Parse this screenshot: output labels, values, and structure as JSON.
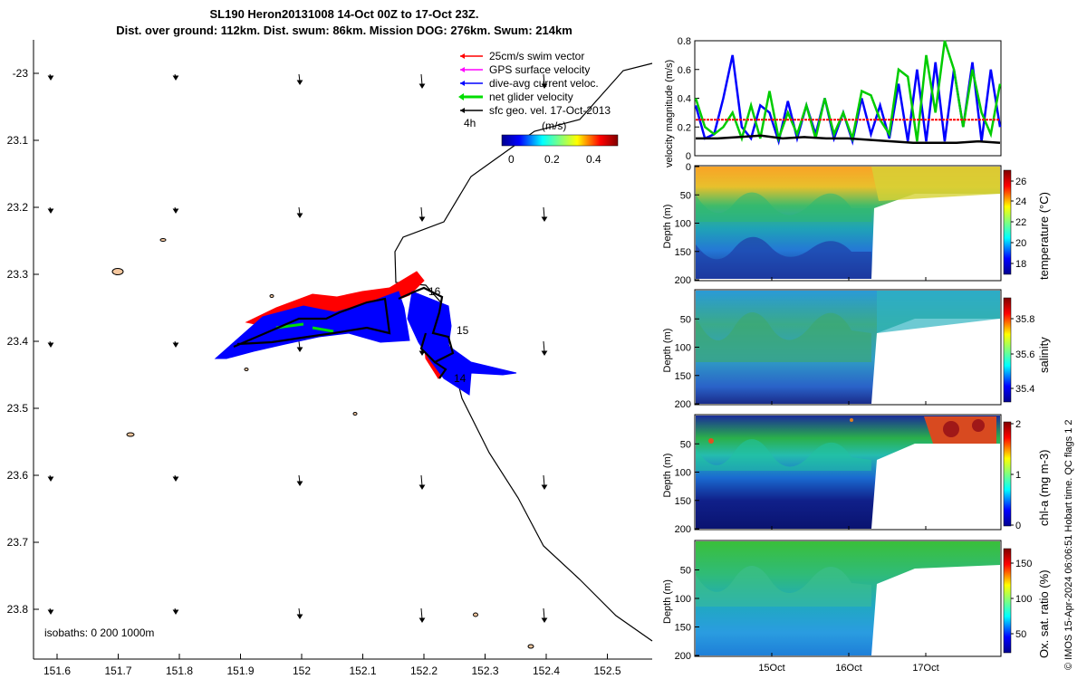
{
  "title": {
    "line1": "SL190 Heron20131008 14-Oct 00Z to 17-Oct 23Z.",
    "line2": "Dist. over ground: 112km. Dist. swum: 86km. Mission DOG: 276km. Swum: 214km"
  },
  "map": {
    "legend": [
      {
        "label": "25cm/s swim vector",
        "color": "#ff0000"
      },
      {
        "label": "GPS surface velocity",
        "color": "#ff00ff"
      },
      {
        "label": "dive-avg current veloc.",
        "color": "#0000ff"
      },
      {
        "label": "net glider velocity",
        "color": "#00dd00"
      },
      {
        "label": "sfc geo. vel. 17-Oct-2013",
        "color": "#000000"
      }
    ],
    "interval_label": "4h",
    "colorbar": {
      "label": "(m/s)",
      "ticks": [
        "0",
        "0.2",
        "0.4"
      ]
    },
    "isobath_label": "isobaths: 0   200  1000m",
    "x_ticks": [
      "151.6",
      "151.7",
      "151.8",
      "151.9",
      "152",
      "152.1",
      "152.2",
      "152.3",
      "152.4",
      "152.5"
    ],
    "y_ticks": [
      "-23",
      "23.1",
      "23.2",
      "23.3",
      "23.4",
      "23.5",
      "23.6",
      "23.7",
      "23.8"
    ],
    "day_labels": [
      "16",
      "15",
      "14"
    ]
  },
  "velocity_panel": {
    "ylabel": "velocity magnitude (m/s)",
    "y_ticks": [
      "0.8",
      "0.6",
      "0.4",
      "0.2",
      "0"
    ]
  },
  "sections": [
    {
      "colorbar_label": "temperature (°C)",
      "cb_ticks": [
        "26",
        "24",
        "22",
        "20",
        "18"
      ]
    },
    {
      "colorbar_label": "salinity",
      "cb_ticks": [
        "35.8",
        "35.6",
        "35.4"
      ]
    },
    {
      "colorbar_label": "chl-a (mg m-3)",
      "cb_ticks": [
        "2",
        "1",
        "0"
      ]
    },
    {
      "colorbar_label": "Ox. sat. ratio (%)",
      "cb_ticks": [
        "150",
        "100",
        "50"
      ]
    }
  ],
  "depth_label": "Depth (m)",
  "depth_ticks": [
    "0",
    "50",
    "100",
    "150",
    "200"
  ],
  "time_ticks": [
    "15Oct",
    "16Oct",
    "17Oct"
  ],
  "footer": "© IMOS 15-Apr-2024 06:06:51 Hobart time. QC flags 1  2",
  "chart_data": [
    {
      "type": "scatter",
      "description": "glider track map",
      "x_range": [
        151.57,
        152.58
      ],
      "y_range": [
        -22.95,
        -23.87
      ],
      "xlabel": "",
      "ylabel": "",
      "track": [
        [
          151.86,
          -23.42
        ],
        [
          151.95,
          -23.38
        ],
        [
          152.05,
          -23.35
        ],
        [
          152.12,
          -23.32
        ],
        [
          152.1,
          -23.38
        ],
        [
          152.18,
          -23.33
        ],
        [
          152.22,
          -23.32
        ],
        [
          152.25,
          -23.34
        ],
        [
          152.21,
          -23.37
        ],
        [
          152.25,
          -23.42
        ],
        [
          152.2,
          -23.45
        ],
        [
          152.25,
          -23.5
        ]
      ]
    },
    {
      "type": "line",
      "description": "velocity magnitude time series",
      "ylim": [
        0,
        0.8
      ],
      "ylabel": "velocity magnitude (m/s)",
      "series": [
        {
          "color": "#0000ff",
          "values": [
            0.35,
            0.12,
            0.15,
            0.4,
            0.7,
            0.2,
            0.12,
            0.35,
            0.3,
            0.1,
            0.38,
            0.12,
            0.35,
            0.15,
            0.4,
            0.12,
            0.3,
            0.1,
            0.4,
            0.15,
            0.35,
            0.12,
            0.5,
            0.1,
            0.6,
            0.1,
            0.65,
            0.1,
            0.6,
            0.2,
            0.65,
            0.1,
            0.6,
            0.2
          ]
        },
        {
          "color": "#00cc00",
          "values": [
            0.4,
            0.2,
            0.15,
            0.2,
            0.3,
            0.12,
            0.35,
            0.12,
            0.45,
            0.12,
            0.3,
            0.15,
            0.35,
            0.12,
            0.4,
            0.15,
            0.3,
            0.12,
            0.45,
            0.42,
            0.25,
            0.15,
            0.6,
            0.55,
            0.1,
            0.7,
            0.3,
            0.82,
            0.6,
            0.2,
            0.6,
            0.3,
            0.15,
            0.5
          ]
        },
        {
          "color": "#ff0000",
          "values": [
            0.25,
            0.25,
            0.25,
            0.25,
            0.25,
            0.25,
            0.25,
            0.25,
            0.25,
            0.25
          ]
        },
        {
          "color": "#000000",
          "values": [
            0.12,
            0.12,
            0.13,
            0.14,
            0.12,
            0.13,
            0.12,
            0.12,
            0.11,
            0.1,
            0.09,
            0.09,
            0.09,
            0.1,
            0.09
          ]
        }
      ]
    }
  ]
}
